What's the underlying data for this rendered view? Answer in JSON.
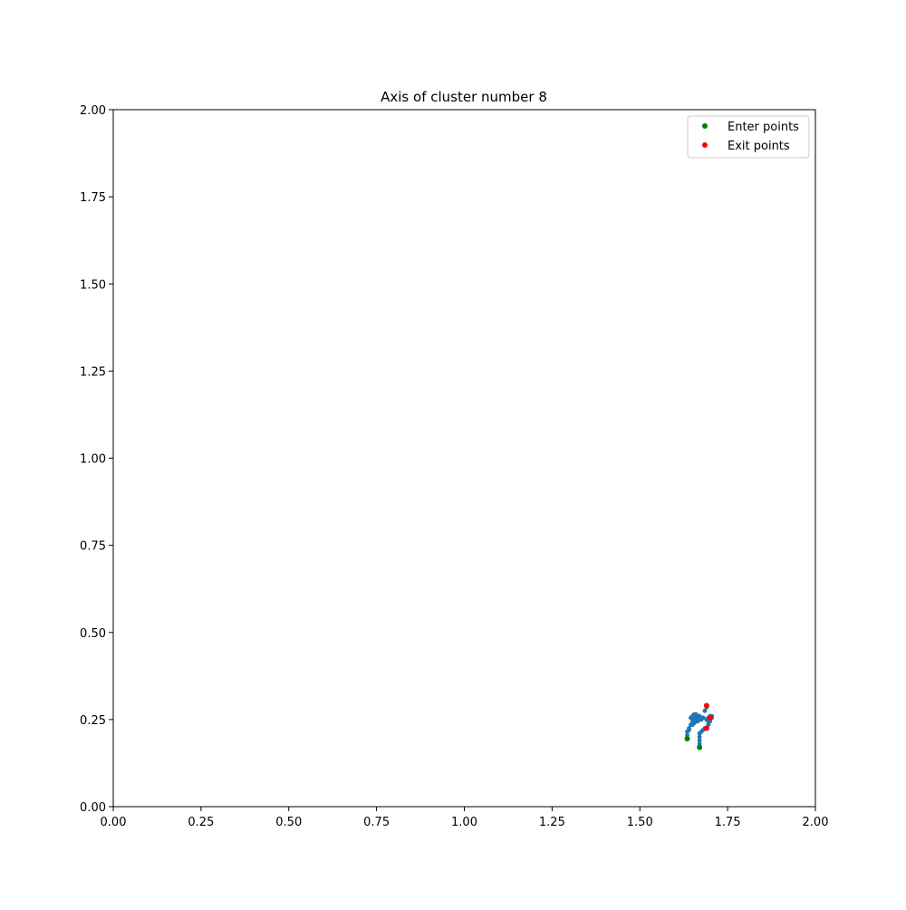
{
  "chart_data": {
    "type": "scatter",
    "title": "Axis of cluster number 8",
    "xlabel": "",
    "ylabel": "",
    "xlim": [
      0,
      2
    ],
    "ylim": [
      0,
      2
    ],
    "x_ticks": [
      "0.00",
      "0.25",
      "0.50",
      "0.75",
      "1.00",
      "1.25",
      "1.50",
      "1.75",
      "2.00"
    ],
    "y_ticks": [
      "0.00",
      "0.25",
      "0.50",
      "0.75",
      "1.00",
      "1.25",
      "1.50",
      "1.75",
      "2.00"
    ],
    "grid": false,
    "legend_position": "top-right",
    "series": [
      {
        "color": "#1f77b4",
        "kind": "path",
        "points": [
          [
            1.67,
            0.17
          ],
          [
            1.67,
            0.18
          ],
          [
            1.67,
            0.19
          ],
          [
            1.67,
            0.2
          ],
          [
            1.67,
            0.21
          ],
          [
            1.675,
            0.215
          ],
          [
            1.68,
            0.22
          ],
          [
            1.685,
            0.225
          ],
          [
            1.69,
            0.225
          ],
          [
            1.695,
            0.235
          ],
          [
            1.7,
            0.245
          ],
          [
            1.705,
            0.255
          ],
          [
            1.7,
            0.26
          ],
          [
            1.635,
            0.195
          ],
          [
            1.635,
            0.205
          ],
          [
            1.635,
            0.215
          ],
          [
            1.64,
            0.225
          ],
          [
            1.645,
            0.235
          ],
          [
            1.65,
            0.245
          ],
          [
            1.655,
            0.25
          ],
          [
            1.66,
            0.255
          ],
          [
            1.665,
            0.26
          ],
          [
            1.67,
            0.255
          ],
          [
            1.675,
            0.25
          ],
          [
            1.68,
            0.255
          ],
          [
            1.69,
            0.25
          ],
          [
            1.695,
            0.255
          ],
          [
            1.705,
            0.26
          ],
          [
            1.645,
            0.255
          ],
          [
            1.65,
            0.26
          ],
          [
            1.655,
            0.265
          ],
          [
            1.66,
            0.265
          ],
          [
            1.67,
            0.26
          ],
          [
            1.68,
            0.255
          ],
          [
            1.64,
            0.22
          ],
          [
            1.65,
            0.235
          ],
          [
            1.655,
            0.24
          ],
          [
            1.66,
            0.245
          ],
          [
            1.665,
            0.245
          ],
          [
            1.685,
            0.275
          ],
          [
            1.69,
            0.285
          ],
          [
            1.69,
            0.25
          ],
          [
            1.695,
            0.245
          ]
        ]
      },
      {
        "name": "Enter points",
        "color": "#008000",
        "points": [
          [
            1.635,
            0.195
          ],
          [
            1.67,
            0.17
          ]
        ]
      },
      {
        "name": "Exit points",
        "color": "#ff0000",
        "points": [
          [
            1.69,
            0.29
          ],
          [
            1.7,
            0.255
          ],
          [
            1.69,
            0.225
          ]
        ]
      }
    ]
  }
}
